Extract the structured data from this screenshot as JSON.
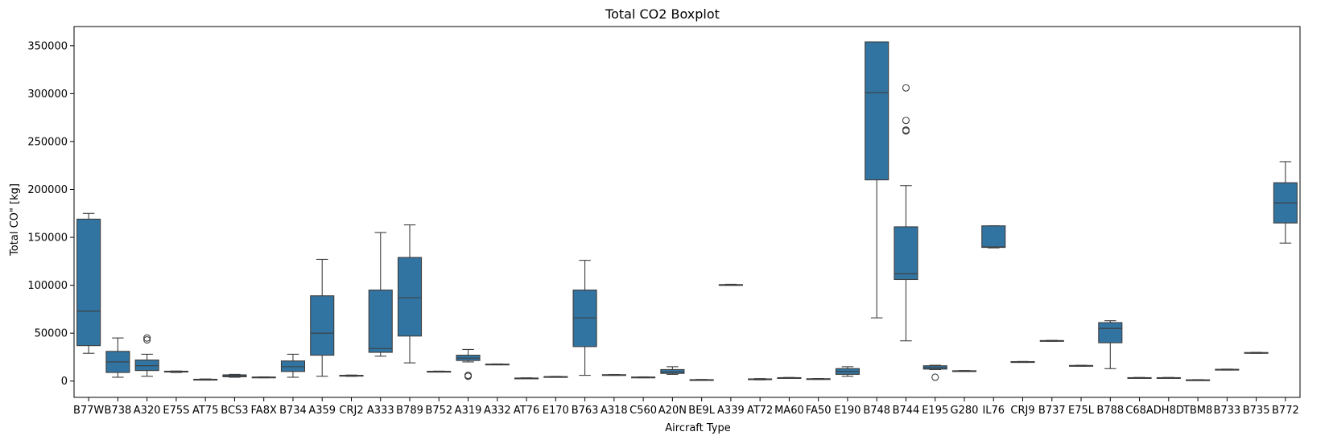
{
  "chart_data": {
    "type": "box",
    "title": "Total CO2 Boxplot",
    "xlabel": "Aircraft Type",
    "ylabel": "Total CO\" [kg]",
    "ylim": [
      -17000,
      370000
    ],
    "yticks": [
      0,
      50000,
      100000,
      150000,
      200000,
      250000,
      300000,
      350000
    ],
    "ytick_labels": [
      "0",
      "50000",
      "100000",
      "150000",
      "200000",
      "250000",
      "300000",
      "350000"
    ],
    "box_color": "#3274a1",
    "grid": false,
    "categories": [
      "B77W",
      "B738",
      "A320",
      "E75S",
      "AT75",
      "BCS3",
      "FA8X",
      "B734",
      "A359",
      "CRJ2",
      "A333",
      "B789",
      "B752",
      "A319",
      "A332",
      "AT76",
      "E170",
      "B763",
      "A318",
      "C560",
      "A20N",
      "BE9L",
      "A339",
      "AT72",
      "MA60",
      "FA50",
      "E190",
      "B748",
      "B744",
      "E195",
      "G280",
      "IL76",
      "CRJ9",
      "B737",
      "E75L",
      "B788",
      "C68A",
      "DH8D",
      "TBM8",
      "B733",
      "B735",
      "B772"
    ],
    "boxes": [
      {
        "whislo": 29000,
        "q1": 37000,
        "med": 73000,
        "q3": 169000,
        "whishi": 175000,
        "fliers": []
      },
      {
        "whislo": 4000,
        "q1": 9000,
        "med": 20000,
        "q3": 31000,
        "whishi": 45000,
        "fliers": []
      },
      {
        "whislo": 5000,
        "q1": 11000,
        "med": 16000,
        "q3": 22000,
        "whishi": 28000,
        "fliers": [
          43000,
          45000
        ]
      },
      {
        "whislo": 9000,
        "q1": 9500,
        "med": 10000,
        "q3": 10300,
        "whishi": 10500,
        "fliers": []
      },
      {
        "whislo": 1000,
        "q1": 1300,
        "med": 1600,
        "q3": 1900,
        "whishi": 2200,
        "fliers": []
      },
      {
        "whislo": 4000,
        "q1": 4500,
        "med": 5500,
        "q3": 6500,
        "whishi": 7000,
        "fliers": []
      },
      {
        "whislo": 3500,
        "q1": 3700,
        "med": 4000,
        "q3": 4200,
        "whishi": 4400,
        "fliers": []
      },
      {
        "whislo": 4000,
        "q1": 10000,
        "med": 15000,
        "q3": 21000,
        "whishi": 28000,
        "fliers": []
      },
      {
        "whislo": 5000,
        "q1": 27000,
        "med": 50000,
        "q3": 89000,
        "whishi": 127000,
        "fliers": []
      },
      {
        "whislo": 5000,
        "q1": 5300,
        "med": 5700,
        "q3": 6000,
        "whishi": 6300,
        "fliers": []
      },
      {
        "whislo": 26000,
        "q1": 30000,
        "med": 34000,
        "q3": 95000,
        "whishi": 155000,
        "fliers": []
      },
      {
        "whislo": 19000,
        "q1": 47000,
        "med": 87000,
        "q3": 129000,
        "whishi": 163000,
        "fliers": []
      },
      {
        "whislo": 9500,
        "q1": 9700,
        "med": 10000,
        "q3": 10200,
        "whishi": 10400,
        "fliers": []
      },
      {
        "whislo": 20000,
        "q1": 21500,
        "med": 24000,
        "q3": 27000,
        "whishi": 33000,
        "fliers": [
          5000,
          6000
        ]
      },
      {
        "whislo": 17000,
        "q1": 17200,
        "med": 17500,
        "q3": 17700,
        "whishi": 17900,
        "fliers": []
      },
      {
        "whislo": 2500,
        "q1": 2700,
        "med": 3000,
        "q3": 3200,
        "whishi": 3400,
        "fliers": []
      },
      {
        "whislo": 4000,
        "q1": 4200,
        "med": 4500,
        "q3": 4700,
        "whishi": 4900,
        "fliers": []
      },
      {
        "whislo": 6000,
        "q1": 36000,
        "med": 66000,
        "q3": 95000,
        "whishi": 126000,
        "fliers": []
      },
      {
        "whislo": 6000,
        "q1": 6200,
        "med": 6500,
        "q3": 6700,
        "whishi": 6900,
        "fliers": []
      },
      {
        "whislo": 3500,
        "q1": 3700,
        "med": 4000,
        "q3": 4200,
        "whishi": 4400,
        "fliers": []
      },
      {
        "whislo": 7000,
        "q1": 8000,
        "med": 9500,
        "q3": 12000,
        "whishi": 15000,
        "fliers": []
      },
      {
        "whislo": 900,
        "q1": 1100,
        "med": 1300,
        "q3": 1500,
        "whishi": 1700,
        "fliers": []
      },
      {
        "whislo": 100000,
        "q1": 100300,
        "med": 100500,
        "q3": 100700,
        "whishi": 101000,
        "fliers": []
      },
      {
        "whislo": 1300,
        "q1": 1600,
        "med": 2000,
        "q3": 2300,
        "whishi": 2600,
        "fliers": []
      },
      {
        "whislo": 3000,
        "q1": 3200,
        "med": 3400,
        "q3": 3600,
        "whishi": 3800,
        "fliers": []
      },
      {
        "whislo": 1800,
        "q1": 2000,
        "med": 2300,
        "q3": 2500,
        "whishi": 2700,
        "fliers": []
      },
      {
        "whislo": 5000,
        "q1": 7000,
        "med": 10000,
        "q3": 13000,
        "whishi": 15000,
        "fliers": []
      },
      {
        "whislo": 66000,
        "q1": 210000,
        "med": 301000,
        "q3": 354000,
        "whishi": 354000,
        "fliers": []
      },
      {
        "whislo": 42000,
        "q1": 106000,
        "med": 112000,
        "q3": 161000,
        "whishi": 204000,
        "fliers": [
          261000,
          262000,
          272000,
          306000
        ]
      },
      {
        "whislo": 12000,
        "q1": 12500,
        "med": 14000,
        "q3": 16000,
        "whishi": 16500,
        "fliers": [
          4000
        ]
      },
      {
        "whislo": 10000,
        "q1": 10200,
        "med": 10500,
        "q3": 10800,
        "whishi": 11000,
        "fliers": []
      },
      {
        "whislo": 139000,
        "q1": 139500,
        "med": 140000,
        "q3": 162000,
        "whishi": 162000,
        "fliers": []
      },
      {
        "whislo": 19500,
        "q1": 19700,
        "med": 20000,
        "q3": 20300,
        "whishi": 20500,
        "fliers": []
      },
      {
        "whislo": 41500,
        "q1": 41700,
        "med": 42000,
        "q3": 42300,
        "whishi": 42500,
        "fliers": []
      },
      {
        "whislo": 15500,
        "q1": 15700,
        "med": 16000,
        "q3": 16300,
        "whishi": 16500,
        "fliers": []
      },
      {
        "whislo": 13000,
        "q1": 40000,
        "med": 55000,
        "q3": 61000,
        "whishi": 63000,
        "fliers": []
      },
      {
        "whislo": 3000,
        "q1": 3200,
        "med": 3400,
        "q3": 3600,
        "whishi": 3800,
        "fliers": []
      },
      {
        "whislo": 3000,
        "q1": 3200,
        "med": 3400,
        "q3": 3600,
        "whishi": 3800,
        "fliers": []
      },
      {
        "whislo": 700,
        "q1": 900,
        "med": 1100,
        "q3": 1300,
        "whishi": 1500,
        "fliers": []
      },
      {
        "whislo": 11500,
        "q1": 11700,
        "med": 12000,
        "q3": 12300,
        "whishi": 12500,
        "fliers": []
      },
      {
        "whislo": 29000,
        "q1": 29200,
        "med": 29500,
        "q3": 29800,
        "whishi": 30000,
        "fliers": []
      },
      {
        "whislo": 144000,
        "q1": 165000,
        "med": 186000,
        "q3": 207000,
        "whishi": 229000,
        "fliers": []
      }
    ]
  }
}
